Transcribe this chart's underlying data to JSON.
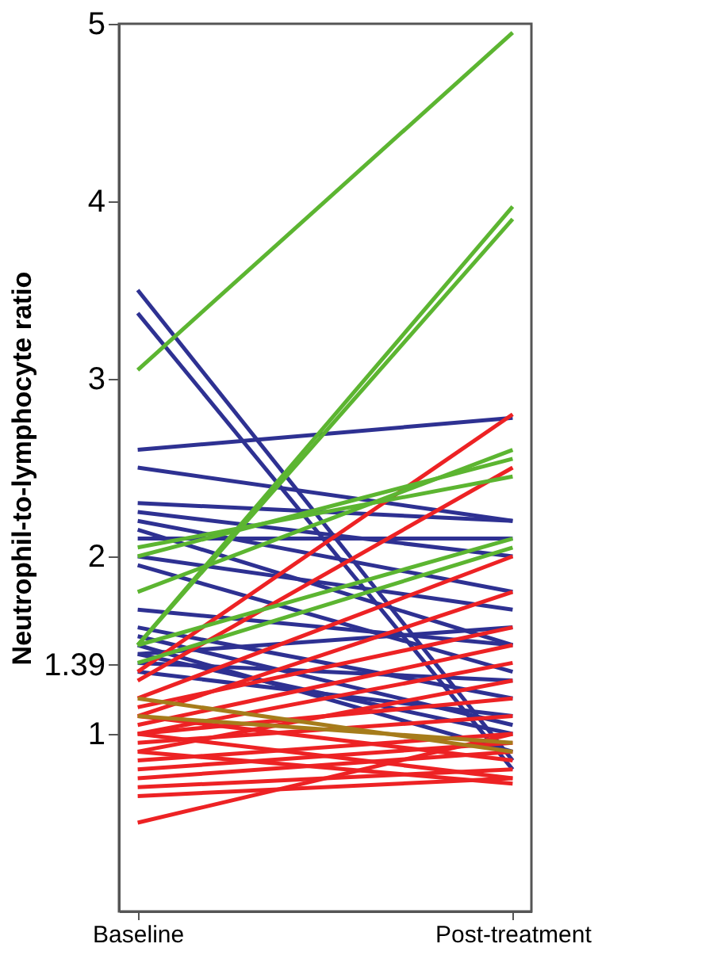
{
  "chart_data": {
    "type": "line",
    "ylabel": "Neutrophil-to-lymphocyte ratio",
    "categories": [
      "Baseline",
      "Post-treatment"
    ],
    "ylim": [
      0,
      5
    ],
    "yticks": [
      1,
      1.39,
      2,
      3,
      4,
      5
    ],
    "grid": false,
    "legend": false,
    "marker": "none",
    "line_style": "solid",
    "series": [
      {
        "color": "#2e3192",
        "values": [
          3.5,
          0.85
        ]
      },
      {
        "color": "#2e3192",
        "values": [
          3.37,
          0.8
        ]
      },
      {
        "color": "#2e3192",
        "values": [
          2.6,
          2.78
        ]
      },
      {
        "color": "#2e3192",
        "values": [
          2.5,
          2.2
        ]
      },
      {
        "color": "#2e3192",
        "values": [
          2.3,
          2.2
        ]
      },
      {
        "color": "#2e3192",
        "values": [
          2.25,
          2.0
        ]
      },
      {
        "color": "#2e3192",
        "values": [
          2.2,
          1.8
        ]
      },
      {
        "color": "#2e3192",
        "values": [
          2.15,
          1.5
        ]
      },
      {
        "color": "#2e3192",
        "values": [
          2.1,
          2.1
        ]
      },
      {
        "color": "#2e3192",
        "values": [
          2.0,
          1.7
        ]
      },
      {
        "color": "#2e3192",
        "values": [
          1.95,
          1.35
        ]
      },
      {
        "color": "#2e3192",
        "values": [
          1.7,
          1.5
        ]
      },
      {
        "color": "#2e3192",
        "values": [
          1.6,
          1.2
        ]
      },
      {
        "color": "#2e3192",
        "values": [
          1.55,
          1.05
        ]
      },
      {
        "color": "#2e3192",
        "values": [
          1.5,
          0.9
        ]
      },
      {
        "color": "#2e3192",
        "values": [
          1.45,
          1.6
        ]
      },
      {
        "color": "#2e3192",
        "values": [
          1.4,
          1.3
        ]
      },
      {
        "color": "#2e3192",
        "values": [
          1.45,
          1.0
        ]
      },
      {
        "color": "#2e3192",
        "values": [
          1.35,
          1.1
        ]
      },
      {
        "color": "#ed2224",
        "values": [
          1.35,
          2.8
        ]
      },
      {
        "color": "#ed2224",
        "values": [
          1.3,
          2.5
        ]
      },
      {
        "color": "#ed2224",
        "values": [
          1.2,
          2.0
        ]
      },
      {
        "color": "#ed2224",
        "values": [
          1.1,
          1.8
        ]
      },
      {
        "color": "#ed2224",
        "values": [
          1.05,
          1.5
        ]
      },
      {
        "color": "#ed2224",
        "values": [
          1.0,
          1.4
        ]
      },
      {
        "color": "#ed2224",
        "values": [
          1.0,
          1.2
        ]
      },
      {
        "color": "#ed2224",
        "values": [
          0.95,
          1.1
        ]
      },
      {
        "color": "#ed2224",
        "values": [
          0.9,
          1.3
        ]
      },
      {
        "color": "#ed2224",
        "values": [
          0.85,
          1.0
        ]
      },
      {
        "color": "#ed2224",
        "values": [
          0.8,
          0.95
        ]
      },
      {
        "color": "#ed2224",
        "values": [
          0.75,
          0.9
        ]
      },
      {
        "color": "#ed2224",
        "values": [
          0.7,
          0.8
        ]
      },
      {
        "color": "#ed2224",
        "values": [
          0.65,
          0.75
        ]
      },
      {
        "color": "#ed2224",
        "values": [
          0.5,
          1.0
        ]
      },
      {
        "color": "#ed2224",
        "values": [
          1.1,
          0.85
        ]
      },
      {
        "color": "#ed2224",
        "values": [
          1.0,
          0.75
        ]
      },
      {
        "color": "#ed2224",
        "values": [
          1.15,
          1.6
        ]
      },
      {
        "color": "#ed2224",
        "values": [
          0.9,
          0.72
        ]
      },
      {
        "color": "#a67c1b",
        "values": [
          1.2,
          0.9
        ]
      },
      {
        "color": "#a67c1b",
        "values": [
          1.1,
          0.95
        ]
      },
      {
        "color": "#5cb531",
        "values": [
          3.05,
          4.95
        ]
      },
      {
        "color": "#5cb531",
        "values": [
          1.5,
          3.97
        ]
      },
      {
        "color": "#5cb531",
        "values": [
          1.5,
          3.9
        ]
      },
      {
        "color": "#5cb531",
        "values": [
          1.8,
          2.6
        ]
      },
      {
        "color": "#5cb531",
        "values": [
          2.0,
          2.55
        ]
      },
      {
        "color": "#5cb531",
        "values": [
          2.05,
          2.45
        ]
      },
      {
        "color": "#5cb531",
        "values": [
          1.5,
          2.1
        ]
      },
      {
        "color": "#5cb531",
        "values": [
          1.4,
          2.05
        ]
      }
    ]
  }
}
